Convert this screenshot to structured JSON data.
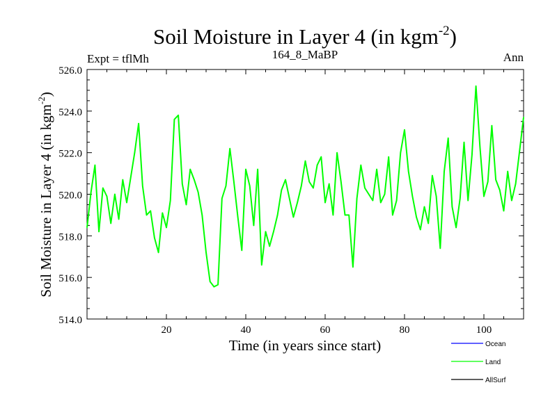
{
  "chart_data": {
    "type": "line",
    "title": "Soil Moisture in Layer 4 (in kgm",
    "title_superscript": "-2",
    "title_suffix": ")",
    "subtitle_left": "Expt = tflMh",
    "subtitle_center": "164_8_MaBP",
    "subtitle_right": "Ann",
    "xlabel": "Time (in years since start)",
    "ylabel": "Soil Moisture in Layer 4 (in kgm",
    "ylabel_superscript": "-2",
    "ylabel_suffix": ")",
    "xlim": [
      0,
      110
    ],
    "ylim": [
      514,
      526
    ],
    "x_ticks": [
      20,
      40,
      60,
      80,
      100
    ],
    "x_tick_labels": [
      "20",
      "40",
      "60",
      "80",
      "100"
    ],
    "y_ticks": [
      514,
      516,
      518,
      520,
      522,
      524,
      526
    ],
    "y_tick_labels": [
      "514.0",
      "516.0",
      "518.0",
      "520.0",
      "522.0",
      "524.0",
      "526.0"
    ],
    "legend": {
      "placement": "bottom-right-outside",
      "entries": [
        {
          "label": "Ocean",
          "color": "#0000ff"
        },
        {
          "label": "Land",
          "color": "#00ff00"
        },
        {
          "label": "AllSurf",
          "color": "#000000"
        }
      ]
    },
    "series": [
      {
        "name": "Land",
        "color": "#00ff00",
        "x": [
          0,
          1,
          2,
          3,
          4,
          5,
          6,
          7,
          8,
          9,
          10,
          11,
          12,
          13,
          14,
          15,
          16,
          17,
          18,
          19,
          20,
          21,
          22,
          23,
          24,
          25,
          26,
          27,
          28,
          29,
          30,
          31,
          32,
          33,
          34,
          35,
          36,
          37,
          38,
          39,
          40,
          41,
          42,
          43,
          44,
          45,
          46,
          47,
          48,
          49,
          50,
          51,
          52,
          53,
          54,
          55,
          56,
          57,
          58,
          59,
          60,
          61,
          62,
          63,
          64,
          65,
          66,
          67,
          68,
          69,
          70,
          71,
          72,
          73,
          74,
          75,
          76,
          77,
          78,
          79,
          80,
          81,
          82,
          83,
          84,
          85,
          86,
          87,
          88,
          89,
          90,
          91,
          92,
          93,
          94,
          95,
          96,
          97,
          98,
          99,
          100,
          101,
          102,
          103,
          104,
          105,
          106,
          107,
          108,
          109,
          110
        ],
        "values": [
          518.4,
          520.1,
          521.4,
          518.2,
          520.3,
          519.9,
          518.6,
          520.0,
          518.8,
          520.7,
          519.6,
          520.8,
          522.0,
          523.4,
          520.4,
          519.0,
          519.2,
          517.9,
          517.2,
          519.1,
          518.4,
          519.7,
          523.6,
          523.8,
          520.5,
          519.5,
          521.2,
          520.7,
          520.1,
          519.0,
          517.2,
          515.8,
          515.55,
          515.65,
          519.8,
          520.4,
          522.2,
          520.6,
          518.9,
          517.3,
          521.2,
          520.4,
          518.5,
          521.2,
          516.6,
          518.2,
          517.5,
          518.2,
          519.0,
          520.2,
          520.7,
          519.8,
          518.9,
          519.6,
          520.4,
          521.6,
          520.6,
          520.3,
          521.4,
          521.8,
          519.6,
          520.5,
          519.0,
          522.0,
          520.6,
          519.0,
          519.0,
          516.5,
          519.8,
          521.4,
          520.3,
          520.0,
          519.7,
          521.2,
          519.6,
          520.0,
          521.8,
          519.0,
          519.7,
          522.0,
          523.1,
          521.1,
          519.9,
          518.9,
          518.3,
          519.4,
          518.6,
          520.9,
          519.9,
          517.4,
          521.1,
          522.7,
          519.4,
          518.4,
          519.8,
          522.5,
          519.7,
          521.9,
          525.2,
          522.3,
          519.9,
          520.6,
          523.3,
          520.7,
          520.2,
          519.2,
          521.1,
          519.7,
          520.5,
          522.1,
          523.7
        ]
      }
    ]
  }
}
